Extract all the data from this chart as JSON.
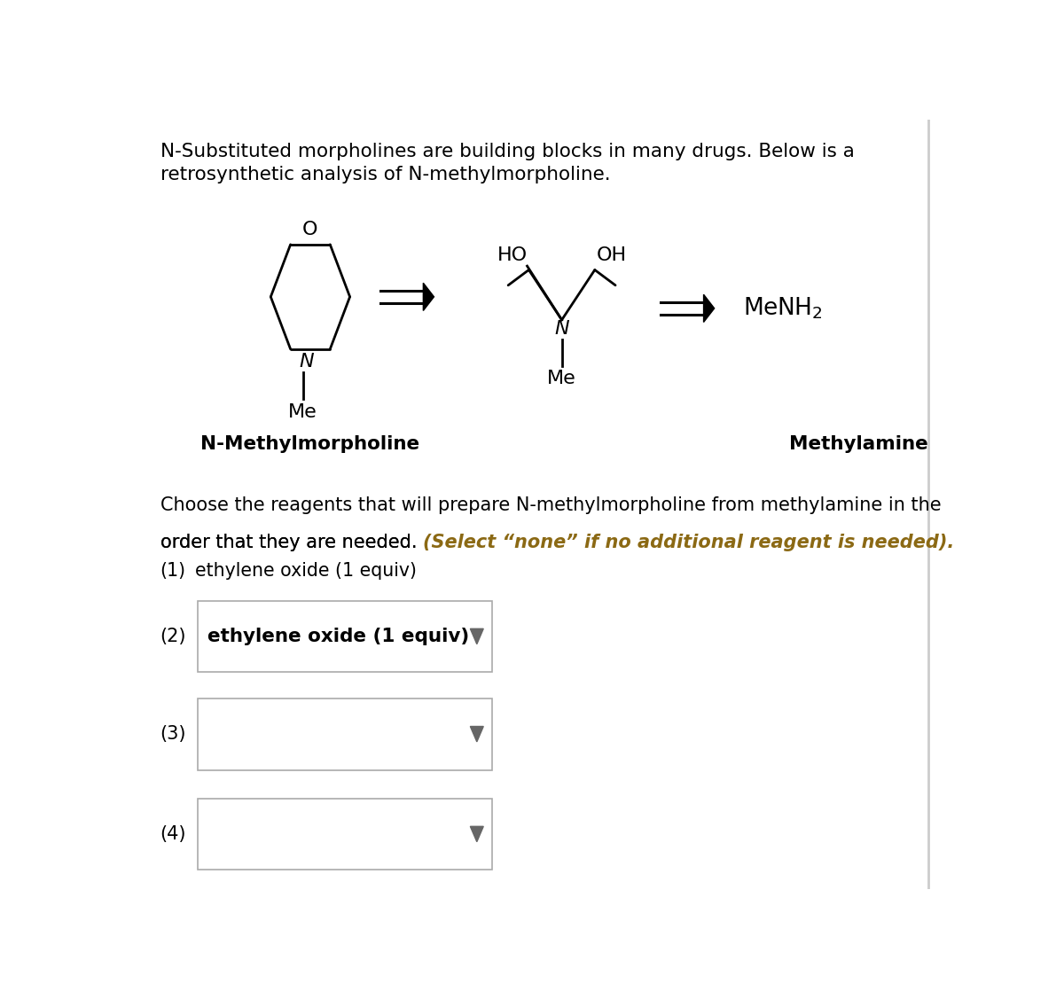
{
  "bg_color": "#ffffff",
  "title_line1": "N-Substituted morpholines are building blocks in many drugs. Below is a",
  "title_line2": "retrosynthetic analysis of N-methylmorpholine.",
  "label_nmm": "N-Methylmorpholine",
  "label_ma": "Methylamine",
  "question_line1": "Choose the reagents that will prepare N-methylmorpholine from methylamine in the",
  "question_line2_normal": "order that they are needed. ",
  "question_line2_italic": "(Select “none” if no additional reagent is needed).",
  "step1_label": "(1)",
  "step1_text": "ethylene oxide (1 equiv)",
  "step2_label": "(2)",
  "step2_text": "ethylene oxide (1 equiv)",
  "step3_label": "(3)",
  "step4_label": "(4)",
  "italic_color": "#8B6914",
  "border_color": "#cccccc",
  "box_border_color": "#aaaaaa",
  "triangle_color": "#666666"
}
